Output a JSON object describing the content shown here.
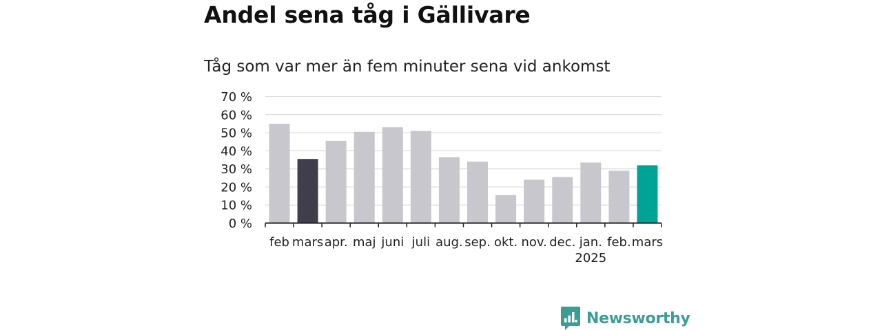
{
  "title": "Andel sena tåg i Gällivare",
  "subtitle": "Tåg som var mer än fem minuter sena vid ankomst",
  "logo": {
    "text": "Newsworthy",
    "icon": "newsworthy-bar-chart-icon",
    "color": "#3a9e95"
  },
  "chart_data": {
    "type": "bar",
    "categories": [
      "feb",
      "mars",
      "apr.",
      "maj",
      "juni",
      "juli",
      "aug.",
      "sep.",
      "okt.",
      "nov.",
      "dec.",
      "jan.",
      "feb.",
      "mars"
    ],
    "year_labels": [
      {
        "category_index": 11,
        "text": "2025"
      }
    ],
    "values": [
      55,
      35.5,
      45.5,
      50.5,
      53,
      51,
      36.5,
      34,
      15.5,
      24,
      25.5,
      33.5,
      29,
      32
    ],
    "highlights": {
      "1": "#403e4a",
      "13": "#00a496"
    },
    "bar_color": "#c8c7ce",
    "yticks": [
      0,
      10,
      20,
      30,
      40,
      50,
      60,
      70
    ],
    "ytick_labels": [
      "0 %",
      "10 %",
      "20 %",
      "30 %",
      "40 %",
      "50 %",
      "60 %",
      "70 %"
    ],
    "ylim": [
      0,
      70
    ],
    "grid": true,
    "legend": "none",
    "xlabel": "",
    "ylabel": ""
  }
}
